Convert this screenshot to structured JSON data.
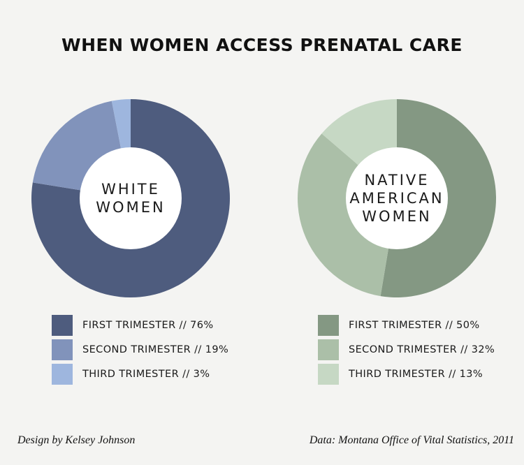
{
  "title": "WHEN WOMEN ACCESS PRENATAL CARE",
  "chart_data": [
    {
      "type": "pie",
      "center_label": [
        "WHITE",
        "WOMEN"
      ],
      "categories": [
        "FIRST TRIMESTER",
        "SECOND TRIMESTER",
        "THIRD TRIMESTER"
      ],
      "values": [
        76,
        19,
        3
      ],
      "colors": [
        "#4e5c7e",
        "#8193bb",
        "#9eb6de"
      ],
      "legend_labels": [
        "FIRST TRIMESTER // 76%",
        "SECOND TRIMESTER // 19%",
        "THIRD TRIMESTER // 3%"
      ]
    },
    {
      "type": "pie",
      "center_label": [
        "NATIVE",
        "AMERICAN",
        "WOMEN"
      ],
      "categories": [
        "FIRST TRIMESTER",
        "SECOND TRIMESTER",
        "THIRD TRIMESTER"
      ],
      "values": [
        50,
        32,
        13
      ],
      "colors": [
        "#849883",
        "#abbfa8",
        "#c6d8c4"
      ],
      "legend_labels": [
        "FIRST TRIMESTER // 50%",
        "SECOND TRIMESTER // 32%",
        "THIRD TRIMESTER // 13%"
      ]
    }
  ],
  "footer": {
    "credit": "Design by Kelsey Johnson",
    "source": "Data: Montana Office of Vital Statistics, 2011"
  }
}
